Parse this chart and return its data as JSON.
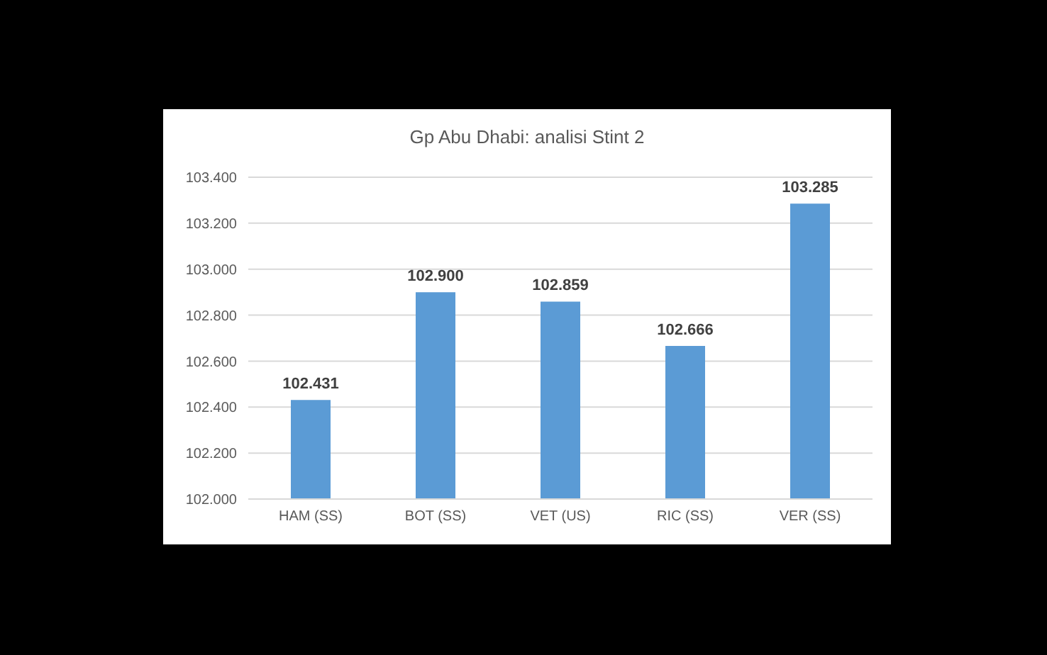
{
  "chart_data": {
    "type": "bar",
    "title": "Gp Abu Dhabi: analisi Stint 2",
    "categories": [
      "HAM (SS)",
      "BOT (SS)",
      "VET (US)",
      "RIC (SS)",
      "VER (SS)"
    ],
    "values": [
      102.431,
      102.9,
      102.859,
      102.666,
      103.285
    ],
    "value_labels": [
      "102.431",
      "102.900",
      "102.859",
      "102.666",
      "103.285"
    ],
    "color": "#5b9bd5",
    "ylim": [
      102,
      103.4
    ],
    "yticks": [
      {
        "value": 102,
        "label": "102.000"
      },
      {
        "value": 102.2,
        "label": "102.200"
      },
      {
        "value": 102.4,
        "label": "102.400"
      },
      {
        "value": 102.6,
        "label": "102.600"
      },
      {
        "value": 102.8,
        "label": "102.800"
      },
      {
        "value": 103,
        "label": "103.000"
      },
      {
        "value": 103.2,
        "label": "103.200"
      },
      {
        "value": 103.4,
        "label": "103.400"
      }
    ],
    "grid": "y"
  }
}
